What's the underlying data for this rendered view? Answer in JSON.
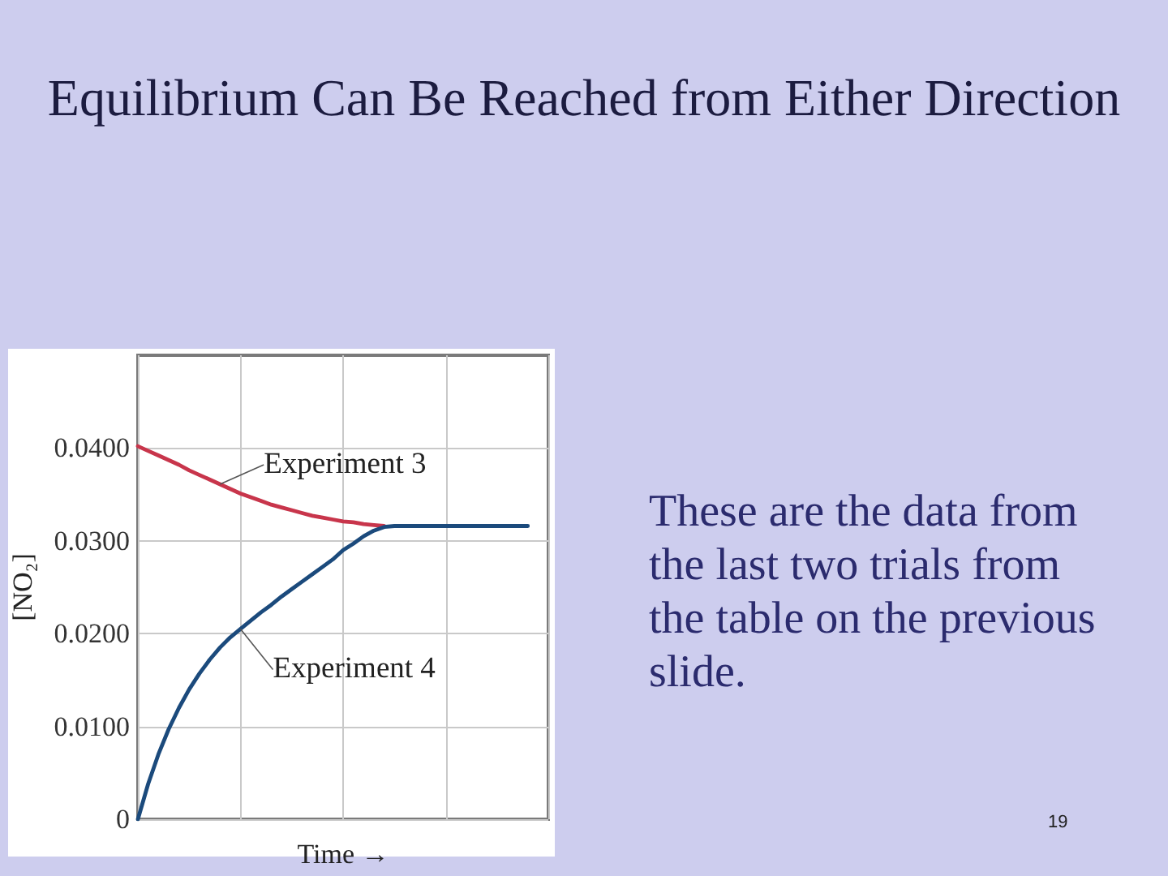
{
  "chart_data": {
    "type": "line",
    "title": "Equilibrium Can Be Reached from Either Direction",
    "ylabel": "[NO₂]",
    "xlabel": "Time →",
    "categories": [
      null,
      null,
      null,
      null,
      null,
      null,
      null,
      null,
      null,
      null,
      null,
      null,
      null,
      null,
      null,
      null,
      null,
      null,
      null,
      null,
      null,
      null,
      null,
      null,
      null,
      null,
      null,
      null,
      null,
      null,
      null,
      null,
      null,
      null,
      null,
      null,
      null,
      null,
      null,
      null,
      null
    ],
    "series": [
      {
        "name": "Experiment 3",
        "color": "#c8354b",
        "values": [
          0.0402,
          0.0397,
          0.0392,
          0.0387,
          0.0382,
          0.0376,
          0.0371,
          0.0366,
          0.0361,
          0.0356,
          0.0351,
          0.0347,
          0.0343,
          0.0339,
          0.0336,
          0.0333,
          0.033,
          0.0327,
          0.0325,
          0.0323,
          0.0321,
          0.032,
          0.0318,
          0.0317,
          0.0316,
          null,
          null,
          null,
          null,
          null,
          null,
          null,
          null,
          null,
          null,
          null,
          null,
          null,
          null,
          null,
          null
        ]
      },
      {
        "name": "Experiment 4",
        "color": "#1b4a7c",
        "values": [
          0,
          0.0038,
          0.007,
          0.0097,
          0.012,
          0.014,
          0.0157,
          0.0172,
          0.0185,
          0.0196,
          0.0205,
          0.0214,
          0.0223,
          0.0231,
          0.024,
          0.0248,
          0.0256,
          0.0264,
          0.0272,
          0.028,
          0.029,
          0.0297,
          0.0305,
          0.0311,
          0.0315,
          0.0316,
          0.0316,
          0.0316,
          0.0316,
          0.0316,
          0.0316,
          0.0316,
          0.0316,
          0.0316,
          0.0316,
          0.0316,
          0.0316,
          0.0316,
          0.0316,
          null,
          null
        ]
      }
    ],
    "ylim": [
      0,
      0.05
    ],
    "yticks": [
      0,
      {
        "value": 0.01,
        "label": "0.0100"
      },
      {
        "value": 0.02,
        "label": "0.0200"
      },
      {
        "value": 0.03,
        "label": "0.0300"
      },
      {
        "value": 0.04,
        "label": "0.0400"
      }
    ],
    "grid": true,
    "marker": "none",
    "annotations": [
      "These are the data from the last two trials from the table on the previous slide.",
      "19"
    ]
  }
}
